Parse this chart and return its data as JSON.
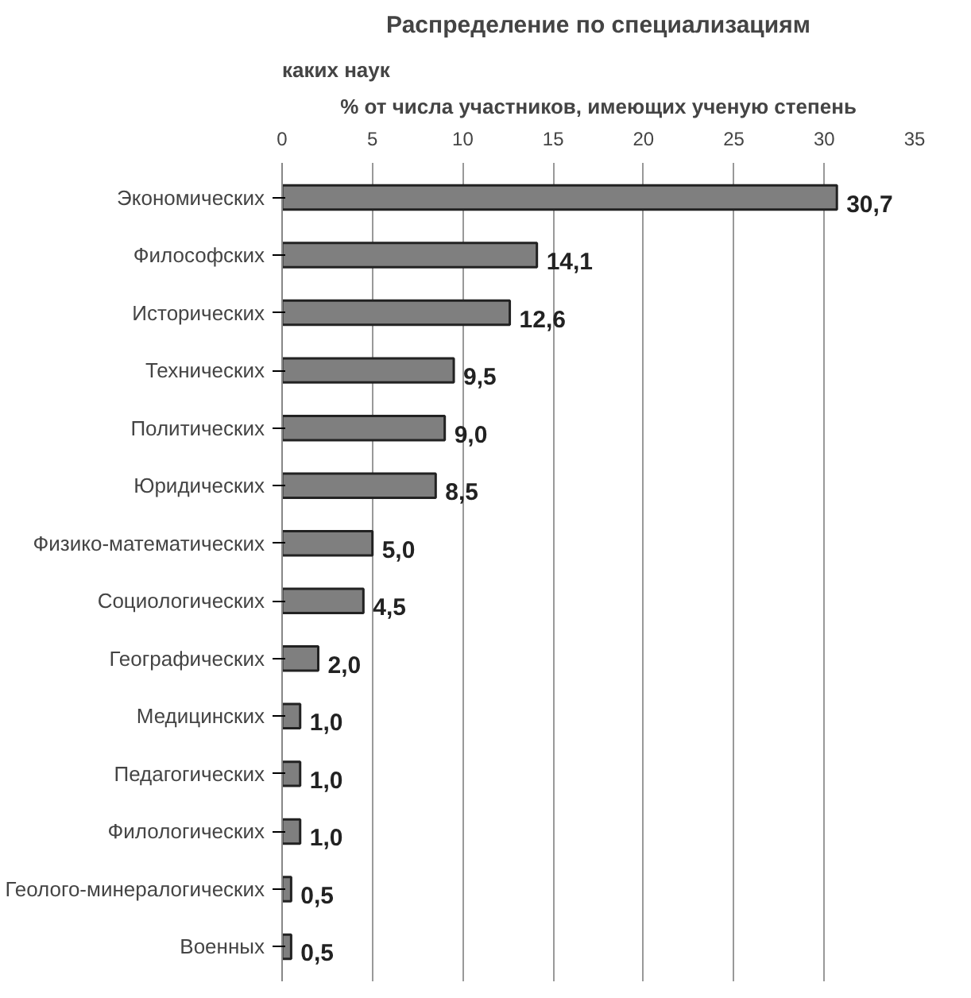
{
  "chart_data": {
    "type": "bar",
    "orientation": "horizontal",
    "title": "Распределение по специализациям",
    "xlabel": "% от числа участников, имеющих ученую степень",
    "ylabel": "каких наук",
    "categories": [
      "Экономических",
      "Философских",
      "Исторических",
      "Технических",
      "Политических",
      "Юридических",
      "Физико-математических",
      "Социологических",
      "Географических",
      "Медицинских",
      "Педагогических",
      "Филологических",
      "Геолого-минералогических",
      "Военных"
    ],
    "values": [
      30.7,
      14.1,
      12.6,
      9.5,
      9.0,
      8.5,
      5.0,
      4.5,
      2.0,
      1.0,
      1.0,
      1.0,
      0.5,
      0.5
    ],
    "value_labels": [
      "30,7",
      "14,1",
      "12,6",
      "9,5",
      "9,0",
      "8,5",
      "5,0",
      "4,5",
      "2,0",
      "1,0",
      "1,0",
      "1,0",
      "0,5",
      "0,5"
    ],
    "color": "#7f7f7f",
    "xlim": [
      0,
      35
    ],
    "xticks": [
      0,
      5,
      10,
      15,
      20,
      25,
      30,
      35
    ],
    "grid": "x"
  }
}
